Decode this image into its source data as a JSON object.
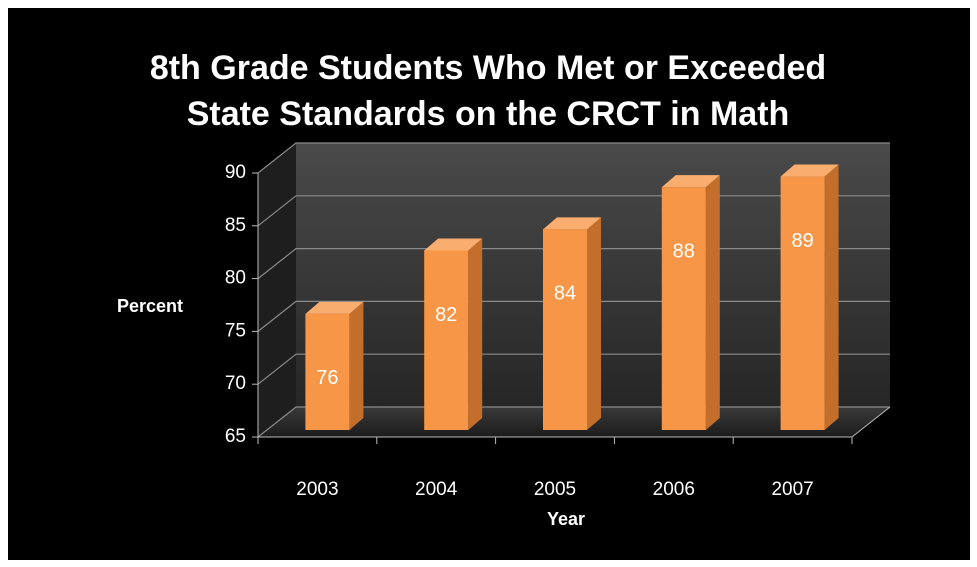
{
  "chart_data": {
    "type": "bar3d",
    "title": [
      "8th Grade Students Who Met or Exceeded",
      "State Standards on the CRCT in Math"
    ],
    "categories": [
      "2003",
      "2004",
      "2005",
      "2006",
      "2007"
    ],
    "values": [
      76,
      82,
      84,
      88,
      89
    ],
    "color": "#f79646",
    "ylim": [
      65,
      90
    ],
    "yticks": [
      65,
      70,
      75,
      80,
      85,
      90
    ],
    "y_label": "Percent",
    "x_label": "Year",
    "grid": true
  }
}
